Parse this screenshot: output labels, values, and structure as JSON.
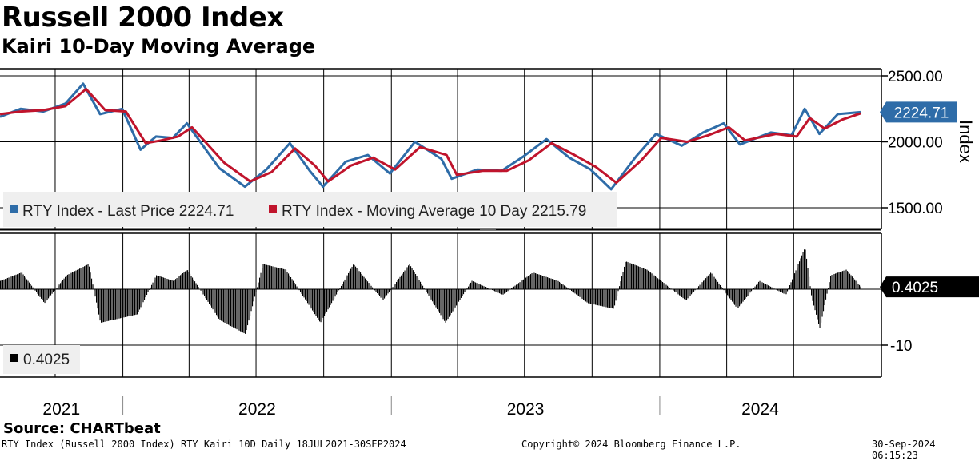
{
  "title": "Russell 2000 Index",
  "subtitle": "Kairi 10-Day Moving Average",
  "source": "Source: CHARTbeat",
  "footer": {
    "left": "RTY Index (Russell 2000 Index) RTY Kairi 10D  Daily 18JUL2021-30SEP2024",
    "center": "Copyright© 2024 Bloomberg Finance L.P.",
    "right": "30-Sep-2024 06:15:23"
  },
  "colors": {
    "price": "#2e6ca8",
    "ma": "#c0142c",
    "histogram": "#000000",
    "last_price_badge": "#2e6ca8",
    "kairi_badge": "#000000"
  },
  "chart_data": [
    {
      "type": "line",
      "panel": "price",
      "ylabel": "Index",
      "ylim": [
        1500,
        2500
      ],
      "y_ticks": [
        "2500.00",
        "2000.00",
        "1500.00"
      ],
      "x_ticks": [
        "2021",
        "2022",
        "2023",
        "2024"
      ],
      "last_value_label": "2224.71",
      "legend": [
        {
          "label": "RTY Index - Last Price 2224.71",
          "color": "#2e6ca8"
        },
        {
          "label": "RTY Index - Moving Average 10 Day 2215.79",
          "color": "#c0142c"
        }
      ],
      "series": [
        {
          "name": "RTY Index - Last Price",
          "x": [
            "2021-07-18",
            "2021-08-15",
            "2021-09-15",
            "2021-10-15",
            "2021-11-08",
            "2021-12-01",
            "2021-12-31",
            "2022-01-25",
            "2022-02-15",
            "2022-03-10",
            "2022-03-29",
            "2022-05-12",
            "2022-06-16",
            "2022-07-15",
            "2022-08-16",
            "2022-09-12",
            "2022-09-30",
            "2022-10-31",
            "2022-11-30",
            "2022-12-30",
            "2023-02-02",
            "2023-03-10",
            "2023-03-24",
            "2023-04-28",
            "2023-05-31",
            "2023-06-30",
            "2023-07-31",
            "2023-08-31",
            "2023-09-29",
            "2023-10-27",
            "2023-11-30",
            "2023-12-27",
            "2024-01-31",
            "2024-02-29",
            "2024-03-28",
            "2024-04-19",
            "2024-05-31",
            "2024-06-28",
            "2024-07-16",
            "2024-08-05",
            "2024-08-30",
            "2024-09-30"
          ],
          "values": [
            2190,
            2250,
            2230,
            2290,
            2440,
            2210,
            2250,
            1940,
            2040,
            2030,
            2140,
            1800,
            1660,
            1790,
            1990,
            1780,
            1660,
            1850,
            1900,
            1760,
            2000,
            1870,
            1720,
            1790,
            1780,
            1890,
            2020,
            1880,
            1790,
            1640,
            1890,
            2060,
            1970,
            2070,
            2140,
            1980,
            2070,
            2050,
            2250,
            2060,
            2210,
            2224.71
          ]
        },
        {
          "name": "RTY Index - Moving Average 10 Day",
          "x": [
            "2021-07-18",
            "2021-08-15",
            "2021-09-15",
            "2021-10-15",
            "2021-11-12",
            "2021-12-08",
            "2022-01-05",
            "2022-02-01",
            "2022-02-22",
            "2022-03-17",
            "2022-04-05",
            "2022-05-19",
            "2022-06-23",
            "2022-07-22",
            "2022-08-23",
            "2022-09-19",
            "2022-10-07",
            "2022-11-07",
            "2022-12-07",
            "2023-01-06",
            "2023-02-09",
            "2023-03-17",
            "2023-03-31",
            "2023-05-05",
            "2023-06-07",
            "2023-07-07",
            "2023-08-07",
            "2023-09-07",
            "2023-10-06",
            "2023-11-03",
            "2023-12-07",
            "2024-01-03",
            "2024-02-07",
            "2024-03-07",
            "2024-04-04",
            "2024-04-26",
            "2024-06-07",
            "2024-07-05",
            "2024-07-23",
            "2024-08-12",
            "2024-09-06",
            "2024-09-30"
          ],
          "values": [
            2210,
            2230,
            2240,
            2270,
            2400,
            2240,
            2230,
            1990,
            2010,
            2040,
            2110,
            1840,
            1700,
            1770,
            1950,
            1820,
            1700,
            1820,
            1880,
            1790,
            1960,
            1900,
            1750,
            1780,
            1780,
            1860,
            1990,
            1900,
            1810,
            1690,
            1860,
            2030,
            2000,
            2050,
            2110,
            2010,
            2060,
            2040,
            2180,
            2100,
            2170,
            2215.79
          ]
        }
      ]
    },
    {
      "type": "bar",
      "panel": "kairi",
      "ylim": [
        -16,
        12
      ],
      "y_ticks": [
        "-10"
      ],
      "last_value_label": "0.4025",
      "legend": [
        {
          "label": "0.4025",
          "color": "#000000"
        }
      ],
      "series": [
        {
          "name": "RTY Kairi 10D",
          "x": [
            "2021-07-18",
            "2021-08-16",
            "2021-09-16",
            "2021-10-16",
            "2021-11-15",
            "2021-12-01",
            "2022-01-20",
            "2022-02-15",
            "2022-03-10",
            "2022-03-29",
            "2022-05-12",
            "2022-06-16",
            "2022-07-10",
            "2022-08-10",
            "2022-09-26",
            "2022-11-10",
            "2022-12-20",
            "2023-01-25",
            "2023-03-15",
            "2023-04-20",
            "2023-06-01",
            "2023-07-12",
            "2023-08-15",
            "2023-09-25",
            "2023-10-30",
            "2023-11-15",
            "2023-12-14",
            "2024-02-05",
            "2024-03-10",
            "2024-04-15",
            "2024-05-15",
            "2024-06-20",
            "2024-07-16",
            "2024-07-25",
            "2024-08-05",
            "2024-08-20",
            "2024-09-10",
            "2024-09-30"
          ],
          "values": [
            1.5,
            3.0,
            -2.5,
            2.5,
            4.5,
            -6.0,
            -4.5,
            2.5,
            1.5,
            3.5,
            -5.5,
            -8.0,
            4.5,
            3.5,
            -6.0,
            4.5,
            -2.0,
            4.5,
            -6.0,
            1.5,
            -1.0,
            3.0,
            1.5,
            -2.5,
            -3.5,
            5.0,
            3.5,
            -2.0,
            3.0,
            -3.5,
            1.5,
            -1.0,
            7.5,
            -1.5,
            -7.0,
            2.5,
            3.5,
            0.4025
          ]
        }
      ]
    }
  ]
}
